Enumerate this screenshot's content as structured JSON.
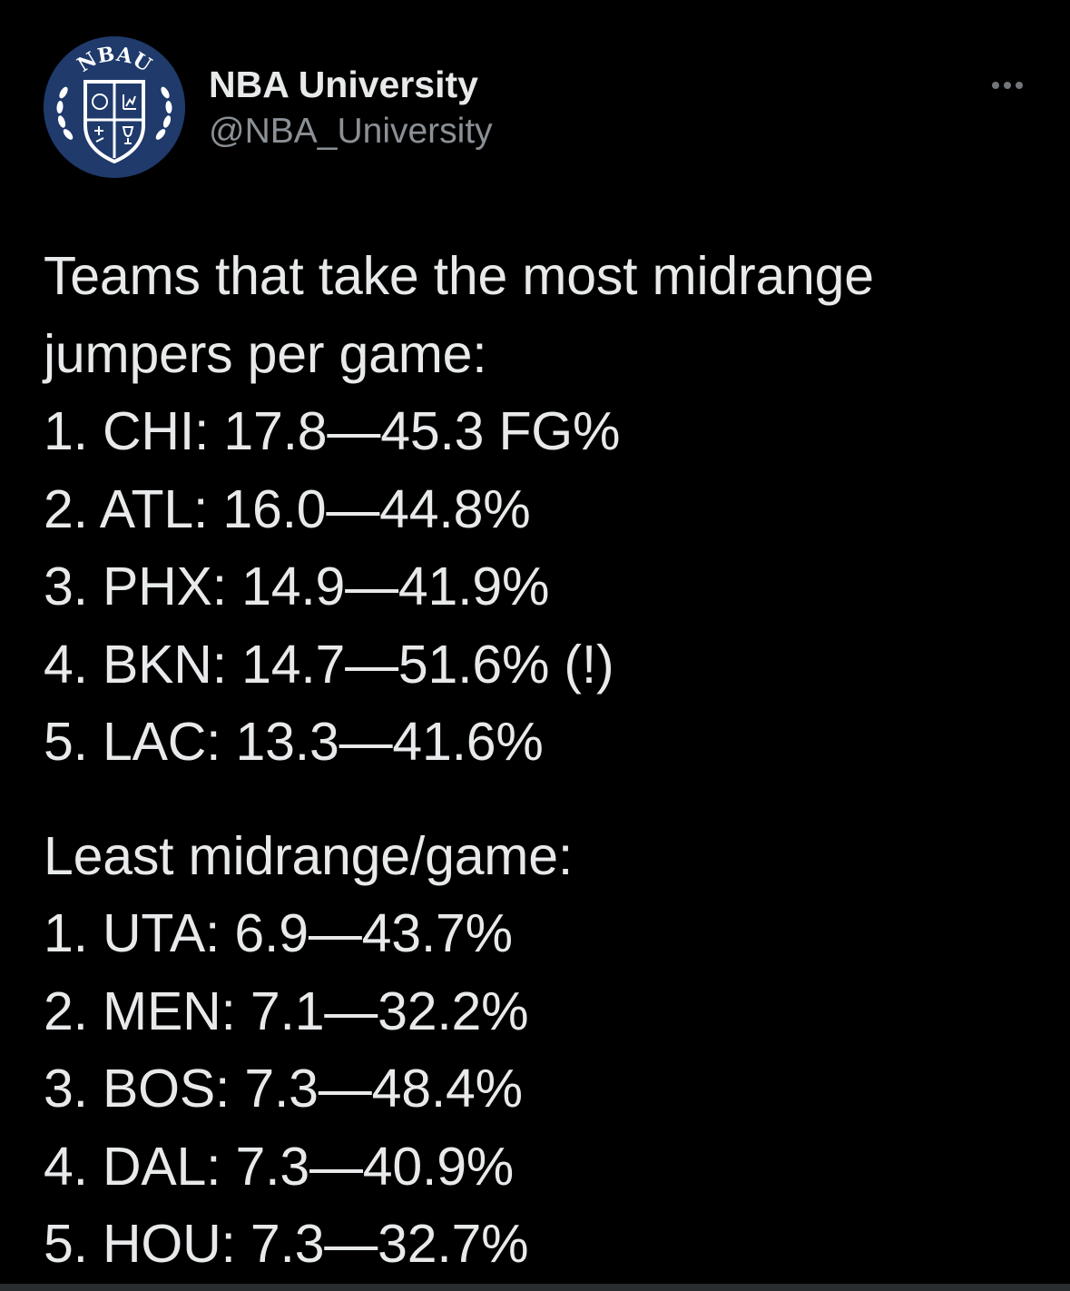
{
  "tweet": {
    "author": {
      "display_name": "NBA University",
      "handle": "@NBA_University",
      "avatar": {
        "icon": "nbau-crest-icon",
        "text": "NBAU",
        "bg_color": "#1f3a6b"
      }
    },
    "more_icon": "more-horizontal-icon",
    "intro_lines": [
      "Teams that take the most midrange",
      "jumpers per game:"
    ],
    "most_list": [
      "1. CHI: 17.8—45.3 FG%",
      "2. ATL: 16.0—44.8%",
      "3. PHX: 14.9—41.9%",
      "4. BKN: 14.7—51.6% (!)",
      "5. LAC: 13.3—41.6%"
    ],
    "least_heading": "Least midrange/game:",
    "least_list": [
      "1. UTA: 6.9—43.7%",
      "2. MEN: 7.1—32.2%",
      "3. BOS: 7.3—48.4%",
      "4. DAL: 7.3—40.9%",
      "5. HOU: 7.3—32.7%"
    ]
  }
}
